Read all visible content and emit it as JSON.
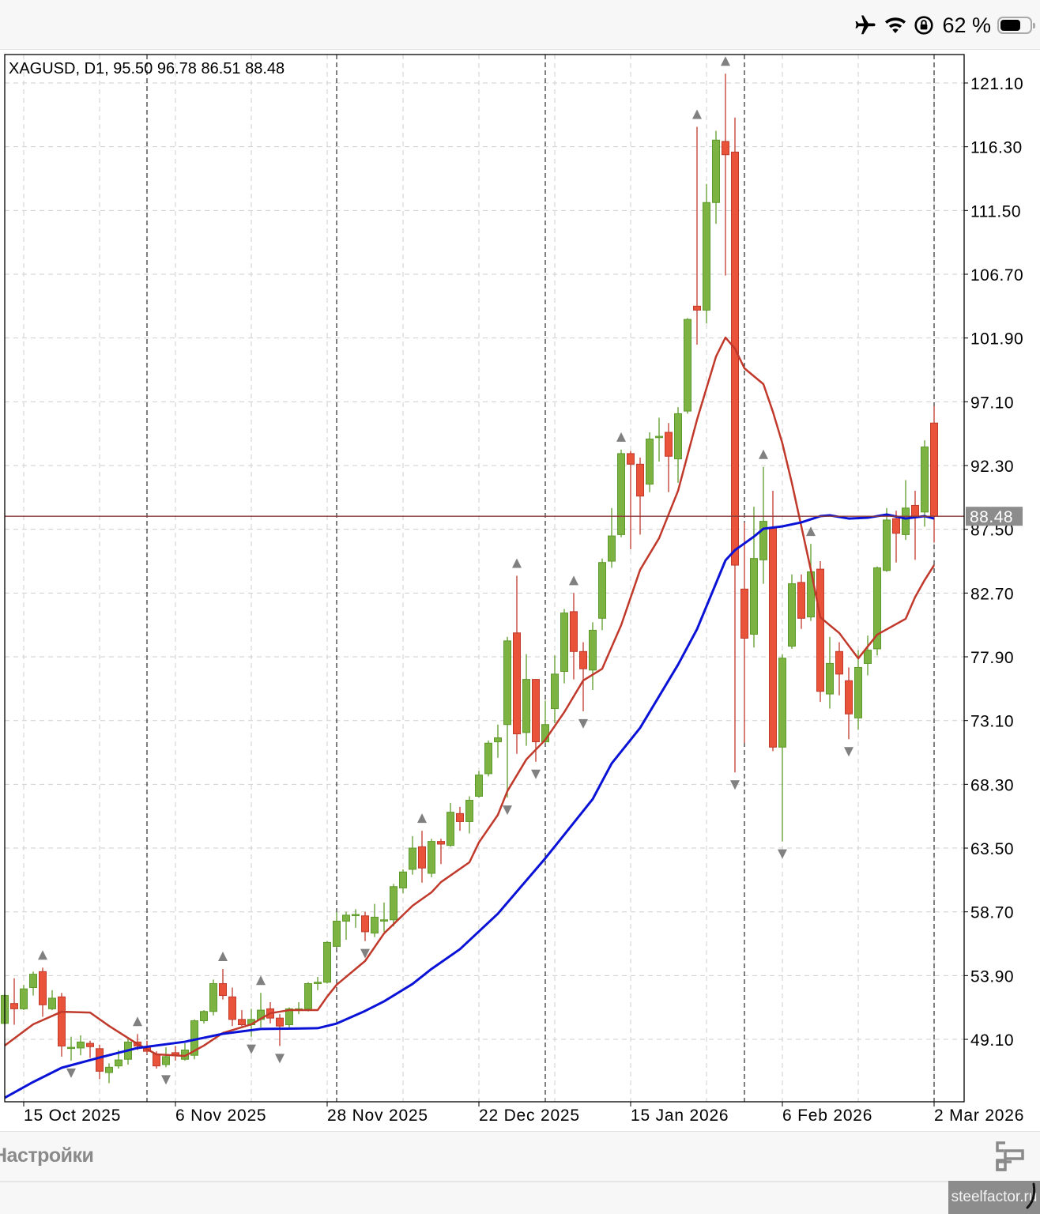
{
  "status_bar": {
    "battery_percent": "62 %",
    "icons": [
      "airplane-icon",
      "wifi-icon",
      "rotation-lock-icon",
      "battery-icon"
    ]
  },
  "toolbar": {
    "settings_label": "Настройки",
    "layout_icon": "layout-icon"
  },
  "watermark": "steelfactor.ru",
  "colors": {
    "bull": "#7cb342",
    "bear": "#e8533a",
    "ma_fast": "#c0392b",
    "ma_slow": "#0a12d6",
    "price_line": "#8b3a3a",
    "price_label_bg": "#8c8c8c"
  },
  "chart_data": {
    "type": "candlestick",
    "title": "XAGUSD, D1, 95.50 96.78 86.51 88.48",
    "symbol": "XAGUSD",
    "timeframe": "D1",
    "ylim": [
      45.5,
      123.1
    ],
    "yticks": [
      "121.10",
      "116.30",
      "111.50",
      "106.70",
      "101.90",
      "97.10",
      "92.30",
      "87.50",
      "82.70",
      "77.90",
      "73.10",
      "68.30",
      "63.50",
      "58.70",
      "53.90",
      "49.10"
    ],
    "current_price": "88.48",
    "xticks": [
      {
        "index": 2,
        "label": "15 Oct 2025"
      },
      {
        "index": 18,
        "label": "6 Nov 2025"
      },
      {
        "index": 34,
        "label": "28 Nov 2025"
      },
      {
        "index": 50,
        "label": "22 Dec 2025"
      },
      {
        "index": 66,
        "label": "15 Jan 2026"
      },
      {
        "index": 82,
        "label": "6 Feb 2026"
      },
      {
        "index": 98,
        "label": "2 Mar 2026"
      }
    ],
    "period_separators": [
      15,
      35,
      57,
      78,
      98
    ],
    "grid": true,
    "ohlc": [
      [
        50.3,
        52.5,
        50.2,
        52.4
      ],
      [
        51.8,
        53.7,
        50.2,
        51.4
      ],
      [
        51.4,
        53.2,
        51.3,
        52.9
      ],
      [
        53.0,
        54.2,
        52.4,
        54.0
      ],
      [
        54.2,
        54.5,
        50.8,
        51.7
      ],
      [
        51.4,
        52.8,
        51.3,
        52.2
      ],
      [
        52.3,
        52.6,
        47.8,
        48.6
      ],
      [
        48.5,
        49.3,
        47.5,
        48.5
      ],
      [
        48.45,
        49.4,
        47.9,
        48.9
      ],
      [
        48.8,
        49.0,
        47.7,
        48.55
      ],
      [
        48.4,
        48.7,
        46.1,
        46.7
      ],
      [
        46.6,
        47.3,
        45.8,
        47.0
      ],
      [
        47.1,
        48.3,
        46.9,
        47.55
      ],
      [
        47.6,
        49.2,
        47.2,
        48.9
      ],
      [
        48.9,
        49.5,
        48.3,
        48.6
      ],
      [
        48.5,
        49.0,
        48.0,
        48.2
      ],
      [
        48.0,
        48.2,
        46.9,
        47.1
      ],
      [
        47.2,
        48.5,
        47.0,
        47.8
      ],
      [
        48.1,
        48.6,
        47.5,
        47.9
      ],
      [
        47.6,
        48.8,
        47.5,
        48.3
      ],
      [
        47.9,
        50.6,
        47.6,
        50.5
      ],
      [
        50.5,
        51.3,
        50.3,
        51.2
      ],
      [
        51.2,
        53.6,
        50.9,
        53.3
      ],
      [
        53.3,
        54.4,
        52.1,
        52.4
      ],
      [
        52.3,
        53.0,
        50.1,
        50.6
      ],
      [
        50.6,
        51.3,
        50.1,
        50.2
      ],
      [
        50.2,
        51.4,
        49.3,
        50.6
      ],
      [
        50.6,
        52.6,
        50.0,
        51.3
      ],
      [
        51.4,
        51.9,
        50.3,
        50.7
      ],
      [
        50.7,
        51.0,
        48.6,
        50.1
      ],
      [
        50.2,
        51.5,
        49.9,
        51.4
      ],
      [
        51.3,
        51.9,
        51.0,
        51.4
      ],
      [
        51.4,
        53.4,
        51.2,
        53.3
      ],
      [
        53.3,
        53.8,
        52.8,
        53.4
      ],
      [
        53.4,
        56.5,
        53.3,
        56.4
      ],
      [
        56.1,
        58.7,
        56.0,
        58.0
      ],
      [
        58.0,
        58.7,
        56.6,
        58.45
      ],
      [
        58.5,
        58.9,
        57.5,
        58.5
      ],
      [
        58.4,
        58.7,
        56.5,
        57.2
      ],
      [
        57.1,
        59.3,
        56.8,
        58.3
      ],
      [
        58.0,
        59.4,
        57.2,
        58.1
      ],
      [
        58.1,
        60.8,
        57.6,
        60.6
      ],
      [
        60.5,
        61.9,
        60.1,
        61.7
      ],
      [
        61.9,
        64.4,
        61.5,
        63.5
      ],
      [
        63.6,
        64.8,
        60.9,
        62.0
      ],
      [
        61.6,
        64.2,
        61.3,
        64.0
      ],
      [
        64.0,
        64.2,
        62.3,
        63.8
      ],
      [
        63.7,
        66.9,
        63.6,
        66.2
      ],
      [
        66.1,
        66.6,
        64.8,
        65.5
      ],
      [
        65.5,
        67.4,
        64.6,
        67.1
      ],
      [
        67.4,
        69.3,
        67.3,
        69.0
      ],
      [
        69.1,
        71.6,
        68.9,
        71.4
      ],
      [
        71.5,
        72.8,
        70.3,
        71.8
      ],
      [
        72.8,
        79.4,
        67.3,
        79.1
      ],
      [
        79.7,
        84.0,
        70.6,
        72.1
      ],
      [
        72.2,
        78.1,
        71.2,
        76.2
      ],
      [
        76.2,
        76.2,
        70.0,
        71.5
      ],
      [
        71.5,
        74.6,
        71.4,
        72.8
      ],
      [
        74.0,
        78.0,
        72.9,
        76.6
      ],
      [
        76.8,
        81.5,
        75.9,
        81.2
      ],
      [
        81.3,
        82.7,
        76.2,
        78.3
      ],
      [
        78.3,
        79.0,
        73.8,
        77.0
      ],
      [
        76.9,
        80.5,
        75.4,
        79.9
      ],
      [
        80.8,
        85.3,
        79.9,
        85.0
      ],
      [
        85.1,
        89.1,
        84.6,
        87.0
      ],
      [
        87.1,
        93.5,
        86.9,
        93.2
      ],
      [
        93.2,
        93.4,
        86.0,
        92.4
      ],
      [
        92.4,
        92.9,
        87.1,
        90.0
      ],
      [
        90.9,
        94.8,
        90.3,
        94.3
      ],
      [
        94.4,
        95.9,
        92.6,
        94.5
      ],
      [
        94.8,
        95.5,
        90.3,
        93.0
      ],
      [
        92.8,
        96.7,
        91.0,
        96.2
      ],
      [
        96.4,
        103.4,
        96.2,
        103.3
      ],
      [
        104.3,
        117.8,
        101.4,
        104.0
      ],
      [
        104.0,
        113.5,
        103.0,
        112.1
      ],
      [
        112.1,
        117.5,
        110.5,
        116.8
      ],
      [
        116.7,
        121.8,
        106.6,
        115.7
      ],
      [
        115.9,
        118.5,
        69.2,
        84.8
      ],
      [
        83.0,
        88.0,
        71.4,
        79.3
      ],
      [
        79.6,
        89.2,
        78.6,
        85.3
      ],
      [
        85.2,
        92.2,
        83.4,
        88.1
      ],
      [
        87.6,
        90.4,
        70.8,
        71.1
      ],
      [
        71.1,
        78.1,
        64.0,
        77.8
      ],
      [
        78.7,
        84.1,
        78.5,
        83.4
      ],
      [
        83.5,
        84.1,
        80.0,
        80.8
      ],
      [
        80.9,
        86.4,
        80.6,
        84.3
      ],
      [
        84.5,
        85.1,
        74.5,
        75.3
      ],
      [
        75.1,
        79.4,
        74.0,
        77.4
      ],
      [
        78.3,
        79.0,
        75.0,
        76.6
      ],
      [
        76.1,
        77.1,
        71.7,
        73.6
      ],
      [
        73.3,
        78.4,
        72.4,
        77.1
      ],
      [
        77.4,
        79.5,
        76.5,
        78.4
      ],
      [
        78.5,
        84.7,
        78.0,
        84.6
      ],
      [
        84.4,
        89.1,
        84.3,
        88.2
      ],
      [
        88.3,
        88.9,
        85.0,
        87.2
      ],
      [
        87.1,
        91.2,
        86.7,
        89.1
      ],
      [
        89.3,
        90.4,
        85.2,
        88.4
      ],
      [
        88.8,
        94.2,
        87.7,
        93.7
      ],
      [
        95.5,
        96.78,
        86.51,
        88.48
      ]
    ],
    "series": [
      {
        "name": "ma_fast",
        "points": [
          [
            0,
            48.63
          ],
          [
            3,
            50.23
          ],
          [
            6,
            51.18
          ],
          [
            9,
            51.12
          ],
          [
            11,
            50.11
          ],
          [
            14,
            48.75
          ],
          [
            16,
            47.97
          ],
          [
            19,
            47.85
          ],
          [
            21,
            48.63
          ],
          [
            23,
            49.58
          ],
          [
            26,
            50.23
          ],
          [
            28,
            51.07
          ],
          [
            30,
            51.3
          ],
          [
            33,
            51.3
          ],
          [
            34,
            52.32
          ],
          [
            35,
            53.21
          ],
          [
            38,
            55.0
          ],
          [
            40,
            57.08
          ],
          [
            43,
            59.16
          ],
          [
            45,
            60.17
          ],
          [
            46,
            60.94
          ],
          [
            49,
            62.43
          ],
          [
            50,
            63.92
          ],
          [
            52,
            66.0
          ],
          [
            53,
            67.79
          ],
          [
            55,
            70.17
          ],
          [
            57,
            71.65
          ],
          [
            59,
            73.73
          ],
          [
            61,
            76.12
          ],
          [
            63,
            77.0
          ],
          [
            65,
            80.28
          ],
          [
            67,
            84.45
          ],
          [
            69,
            86.83
          ],
          [
            71,
            90.4
          ],
          [
            73,
            95.75
          ],
          [
            75,
            100.5
          ],
          [
            76,
            101.94
          ],
          [
            77,
            101.1
          ],
          [
            78,
            99.62
          ],
          [
            80,
            98.43
          ],
          [
            81,
            96.35
          ],
          [
            82,
            93.97
          ],
          [
            83,
            90.99
          ],
          [
            84,
            87.72
          ],
          [
            85,
            84.45
          ],
          [
            86,
            80.88
          ],
          [
            87,
            80.28
          ],
          [
            88,
            79.69
          ],
          [
            90,
            77.78
          ],
          [
            92,
            79.57
          ],
          [
            95,
            80.76
          ],
          [
            96,
            82.4
          ],
          [
            97,
            83.67
          ],
          [
            98,
            84.8
          ]
        ]
      },
      {
        "name": "ma_slow",
        "points": [
          [
            0,
            44.7
          ],
          [
            3,
            45.89
          ],
          [
            6,
            46.96
          ],
          [
            10,
            47.73
          ],
          [
            14,
            48.45
          ],
          [
            19,
            48.92
          ],
          [
            23,
            49.52
          ],
          [
            27,
            49.88
          ],
          [
            33,
            49.94
          ],
          [
            35,
            50.29
          ],
          [
            38,
            51.24
          ],
          [
            40,
            51.96
          ],
          [
            43,
            53.27
          ],
          [
            45,
            54.4
          ],
          [
            48,
            55.89
          ],
          [
            52,
            58.56
          ],
          [
            57,
            62.73
          ],
          [
            59,
            64.51
          ],
          [
            62,
            67.19
          ],
          [
            64,
            69.87
          ],
          [
            67,
            72.55
          ],
          [
            71,
            77.31
          ],
          [
            73,
            79.98
          ],
          [
            76,
            85.16
          ],
          [
            77,
            85.93
          ],
          [
            79,
            86.95
          ],
          [
            80,
            87.54
          ],
          [
            82,
            87.72
          ],
          [
            84,
            88.02
          ],
          [
            86,
            88.49
          ],
          [
            87,
            88.55
          ],
          [
            89,
            88.31
          ],
          [
            91,
            88.37
          ],
          [
            93,
            88.61
          ],
          [
            95,
            88.31
          ],
          [
            97,
            88.49
          ],
          [
            98,
            88.31
          ]
        ]
      }
    ],
    "fractals_up": [
      4,
      14,
      23,
      27,
      44,
      54,
      60,
      65,
      73,
      76,
      80,
      85
    ],
    "fractals_down": [
      7,
      17,
      26,
      29,
      38,
      53,
      56,
      61,
      77,
      82,
      89
    ]
  }
}
